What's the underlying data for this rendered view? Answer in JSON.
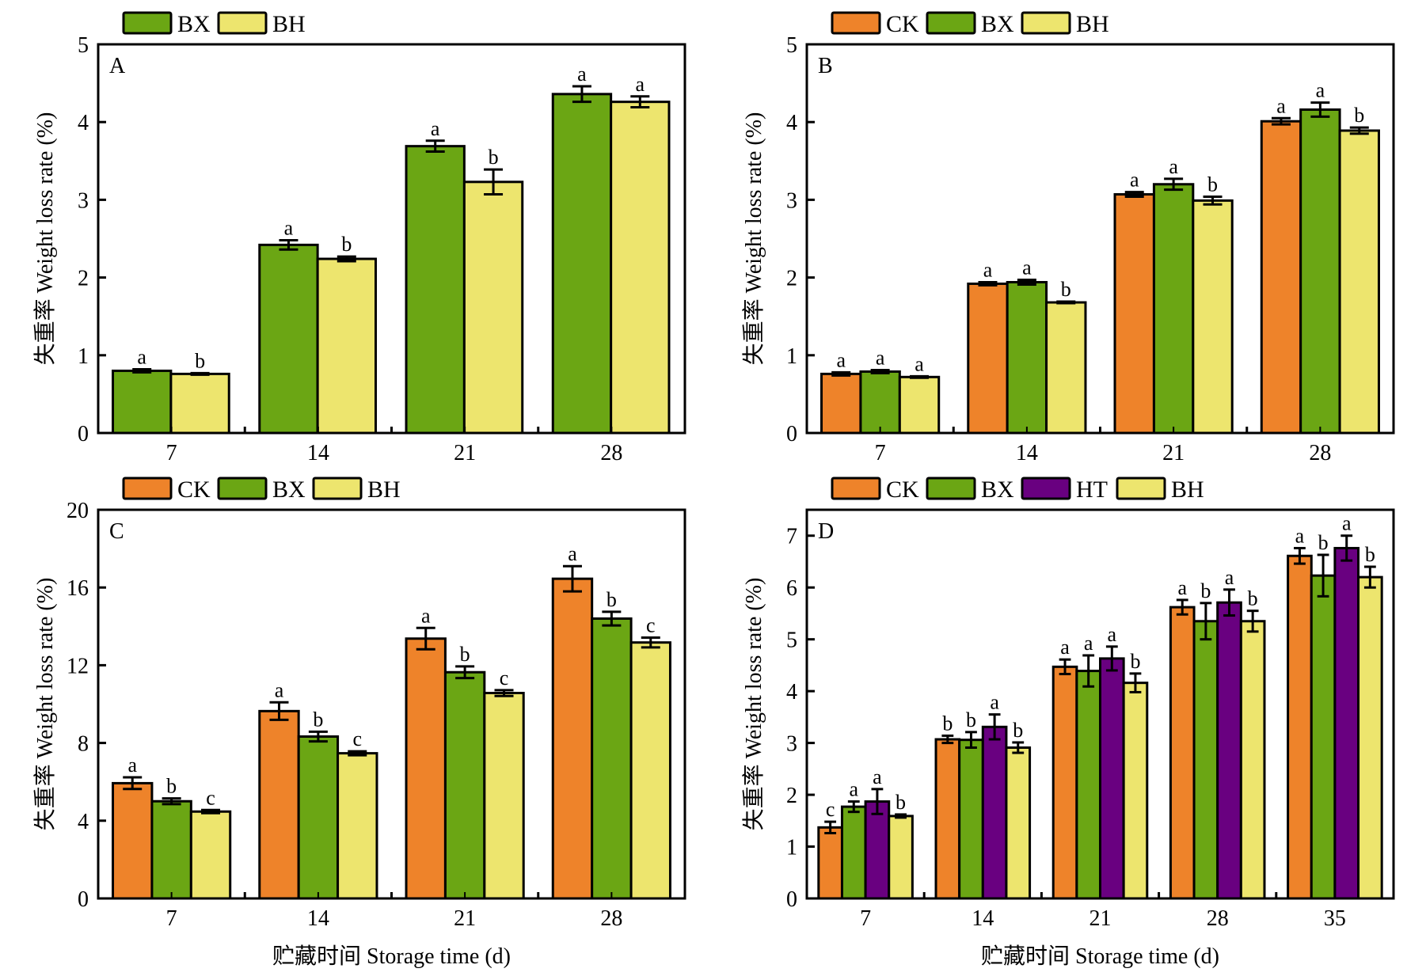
{
  "figure": {
    "colors": {
      "CK": "#EE832A",
      "BX": "#6BA614",
      "HT": "#690080",
      "BH": "#EDE56E"
    },
    "ylabel": "失重率 Weight loss rate (%)",
    "xlabel": "贮藏时间 Storage time (d)"
  },
  "chart_data": [
    {
      "panel": "A",
      "type": "bar",
      "title": "A",
      "xlabel": "",
      "ylabel": "失重率 Weight loss rate (%)",
      "categories": [
        "7",
        "14",
        "21",
        "28"
      ],
      "ylim": [
        0,
        5
      ],
      "yticks": [
        0,
        1,
        2,
        3,
        4,
        5
      ],
      "legend": [
        "BX",
        "BH"
      ],
      "legend_position": "top-left-outside",
      "series": [
        {
          "name": "BX",
          "values": [
            0.8,
            2.42,
            3.69,
            4.36
          ],
          "errors": [
            0.02,
            0.06,
            0.07,
            0.1
          ],
          "labels": [
            "a",
            "a",
            "a",
            "a"
          ]
        },
        {
          "name": "BH",
          "values": [
            0.76,
            2.24,
            3.23,
            4.26
          ],
          "errors": [
            0.01,
            0.03,
            0.16,
            0.07
          ],
          "labels": [
            "b",
            "b",
            "b",
            "a"
          ]
        }
      ]
    },
    {
      "panel": "B",
      "type": "bar",
      "title": "B",
      "xlabel": "",
      "ylabel": "失重率 Weight loss rate (%)",
      "categories": [
        "7",
        "14",
        "21",
        "28"
      ],
      "ylim": [
        0,
        5
      ],
      "yticks": [
        0,
        1,
        2,
        3,
        4,
        5
      ],
      "legend": [
        "CK",
        "BX",
        "BH"
      ],
      "legend_position": "top-left-outside",
      "series": [
        {
          "name": "CK",
          "values": [
            0.76,
            1.92,
            3.07,
            4.01
          ],
          "errors": [
            0.02,
            0.02,
            0.03,
            0.04
          ],
          "labels": [
            "a",
            "a",
            "a",
            "a"
          ]
        },
        {
          "name": "BX",
          "values": [
            0.79,
            1.94,
            3.2,
            4.16
          ],
          "errors": [
            0.02,
            0.03,
            0.07,
            0.09
          ],
          "labels": [
            "a",
            "a",
            "a",
            "a"
          ]
        },
        {
          "name": "BH",
          "values": [
            0.72,
            1.68,
            2.99,
            3.89
          ],
          "errors": [
            0.01,
            0.01,
            0.05,
            0.04
          ],
          "labels": [
            "a",
            "b",
            "b",
            "b"
          ]
        }
      ]
    },
    {
      "panel": "C",
      "type": "bar",
      "title": "C",
      "xlabel": "贮藏时间 Storage time (d)",
      "ylabel": "失重率 Weight loss rate (%)",
      "categories": [
        "7",
        "14",
        "21",
        "28"
      ],
      "ylim": [
        0,
        20
      ],
      "yticks": [
        0,
        4,
        8,
        12,
        16,
        20
      ],
      "legend": [
        "CK",
        "BX",
        "BH"
      ],
      "legend_position": "top-left-outside",
      "series": [
        {
          "name": "CK",
          "values": [
            5.93,
            9.64,
            13.37,
            16.45
          ],
          "errors": [
            0.3,
            0.45,
            0.55,
            0.65
          ],
          "labels": [
            "a",
            "a",
            "a",
            "a"
          ]
        },
        {
          "name": "BX",
          "values": [
            5.0,
            8.33,
            11.64,
            14.4
          ],
          "errors": [
            0.15,
            0.25,
            0.3,
            0.35
          ],
          "labels": [
            "b",
            "b",
            "b",
            "b"
          ]
        },
        {
          "name": "BH",
          "values": [
            4.47,
            7.47,
            10.57,
            13.17
          ],
          "errors": [
            0.08,
            0.1,
            0.15,
            0.25
          ],
          "labels": [
            "c",
            "c",
            "c",
            "c"
          ]
        }
      ]
    },
    {
      "panel": "D",
      "type": "bar",
      "title": "D",
      "xlabel": "贮藏时间 Storage time (d)",
      "ylabel": "失重率 Weight loss rate (%)",
      "categories": [
        "7",
        "14",
        "21",
        "28",
        "35"
      ],
      "ylim": [
        0,
        7.5
      ],
      "yticks": [
        0,
        1,
        2,
        3,
        4,
        5,
        6,
        7
      ],
      "legend": [
        "CK",
        "BX",
        "HT",
        "BH"
      ],
      "legend_position": "top-left-outside",
      "series": [
        {
          "name": "CK",
          "values": [
            1.37,
            3.07,
            4.47,
            5.62,
            6.61
          ],
          "errors": [
            0.11,
            0.07,
            0.14,
            0.14,
            0.15
          ],
          "labels": [
            "c",
            "b",
            "a",
            "a",
            "a"
          ]
        },
        {
          "name": "BX",
          "values": [
            1.77,
            3.06,
            4.39,
            5.35,
            6.23
          ],
          "errors": [
            0.1,
            0.15,
            0.3,
            0.35,
            0.4
          ],
          "labels": [
            "a",
            "b",
            "a",
            "b",
            "b"
          ]
        },
        {
          "name": "HT",
          "values": [
            1.87,
            3.31,
            4.63,
            5.71,
            6.76
          ],
          "errors": [
            0.24,
            0.24,
            0.23,
            0.25,
            0.24
          ],
          "labels": [
            "a",
            "a",
            "a",
            "a",
            "a"
          ]
        },
        {
          "name": "BH",
          "values": [
            1.59,
            2.91,
            4.16,
            5.35,
            6.2
          ],
          "errors": [
            0.03,
            0.1,
            0.18,
            0.2,
            0.2
          ],
          "labels": [
            "b",
            "b",
            "b",
            "b",
            "b"
          ]
        }
      ]
    }
  ]
}
